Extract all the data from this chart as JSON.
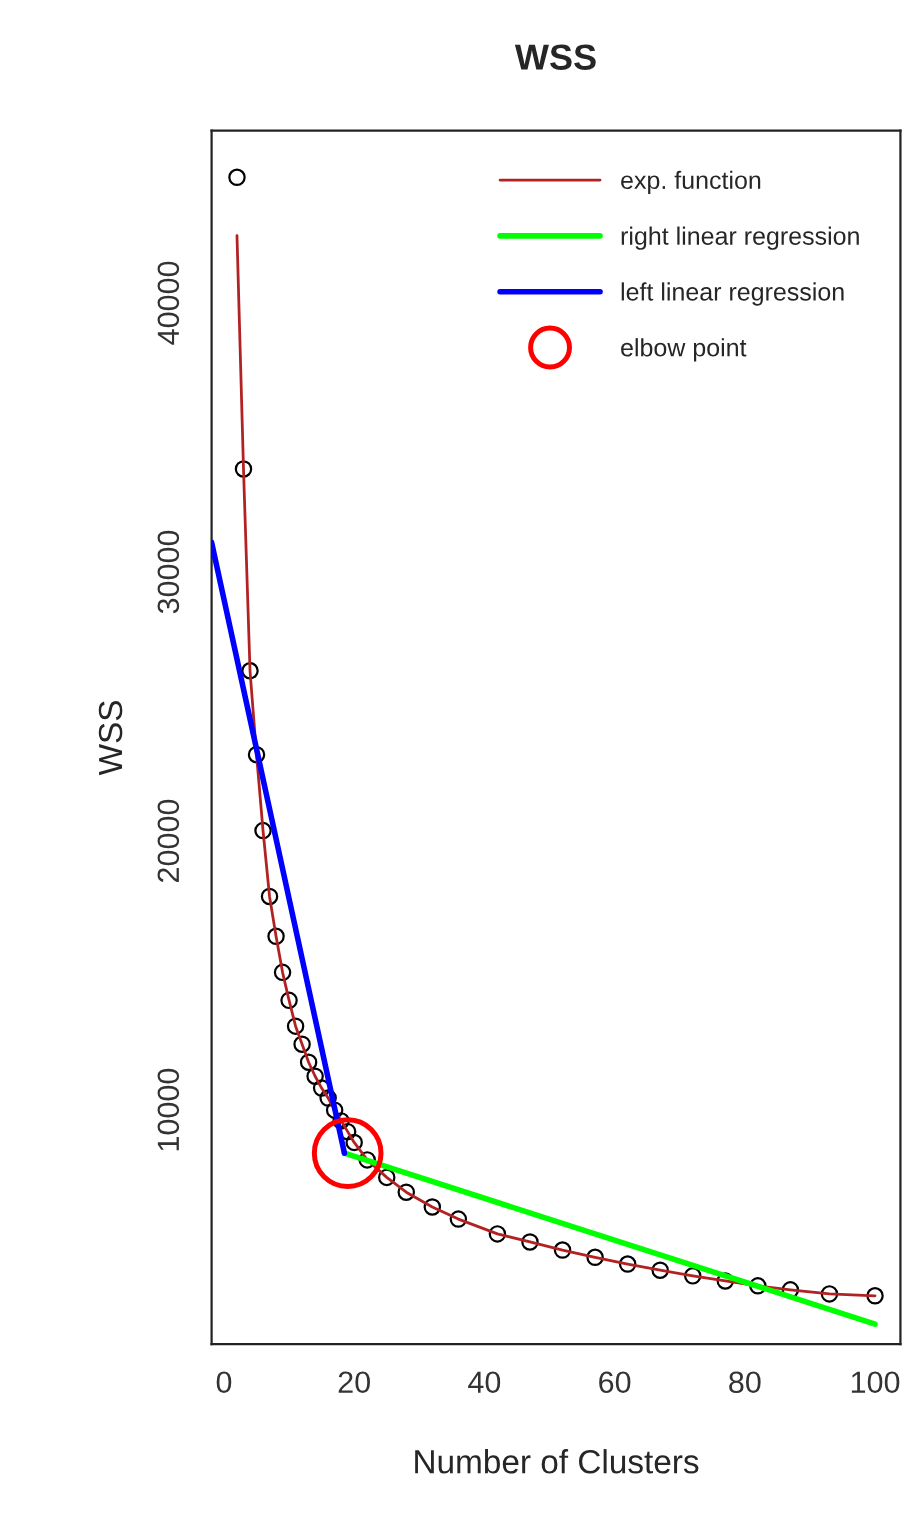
{
  "chart_data": {
    "type": "scatter",
    "title": "WSS",
    "xlabel": "Number of Clusters",
    "ylabel": "WSS",
    "xlim": [
      -1.9,
      103.9
    ],
    "ylim": [
      1300,
      46400
    ],
    "xticks": [
      0,
      20,
      40,
      60,
      80,
      100
    ],
    "yticks": [
      10000,
      20000,
      30000,
      40000
    ],
    "grid": false,
    "legend": "top right",
    "series": [
      {
        "color": "#000000",
        "marker": "circle",
        "x": [
          2,
          3,
          4,
          5,
          6,
          7,
          8,
          9,
          10,
          11,
          12,
          13,
          14,
          15,
          16,
          17,
          18,
          19,
          20,
          22,
          25,
          28,
          32,
          36,
          42,
          47,
          52,
          57,
          62,
          67,
          72,
          77,
          82,
          87,
          93,
          100
        ],
        "values": [
          44670,
          33830,
          26330,
          23210,
          20390,
          17940,
          16460,
          15120,
          14080,
          13120,
          12450,
          11780,
          11260,
          10820,
          10450,
          10000,
          9600,
          9200,
          8800,
          8150,
          7500,
          6950,
          6400,
          5950,
          5400,
          5100,
          4800,
          4530,
          4280,
          4050,
          3840,
          3650,
          3470,
          3320,
          3170,
          3100
        ]
      },
      {
        "type": "line",
        "name": "exp. function",
        "color": "#b22222",
        "line_style": "solid",
        "x": [
          2,
          3,
          4,
          5,
          6,
          7,
          8,
          9,
          10,
          11,
          12,
          13,
          14,
          15,
          16,
          17,
          18,
          19,
          20,
          22,
          25,
          28,
          32,
          36,
          42,
          47,
          52,
          57,
          62,
          67,
          72,
          77,
          82,
          87,
          93,
          100
        ],
        "values": [
          42500,
          33830,
          26330,
          23210,
          20390,
          17940,
          16460,
          15120,
          14080,
          13120,
          12450,
          11780,
          11260,
          10820,
          10450,
          10000,
          9600,
          9200,
          8800,
          8150,
          7500,
          6950,
          6400,
          5950,
          5400,
          5100,
          4800,
          4530,
          4280,
          4050,
          3840,
          3650,
          3470,
          3320,
          3170,
          3100
        ]
      },
      {
        "type": "line",
        "name": "right linear regression",
        "color": "#00ff00",
        "line_style": "solid",
        "x": [
          18.5,
          100
        ],
        "values": [
          8400,
          2050
        ]
      },
      {
        "type": "line",
        "name": "left linear regression",
        "color": "#0000ff",
        "line_style": "solid",
        "x": [
          -1.9,
          18.5
        ],
        "values": [
          31100,
          8400
        ]
      },
      {
        "type": "scatter",
        "name": "elbow point",
        "color": "#ff0000",
        "marker": "circle",
        "x": [
          19
        ],
        "values": [
          8400
        ]
      }
    ]
  }
}
